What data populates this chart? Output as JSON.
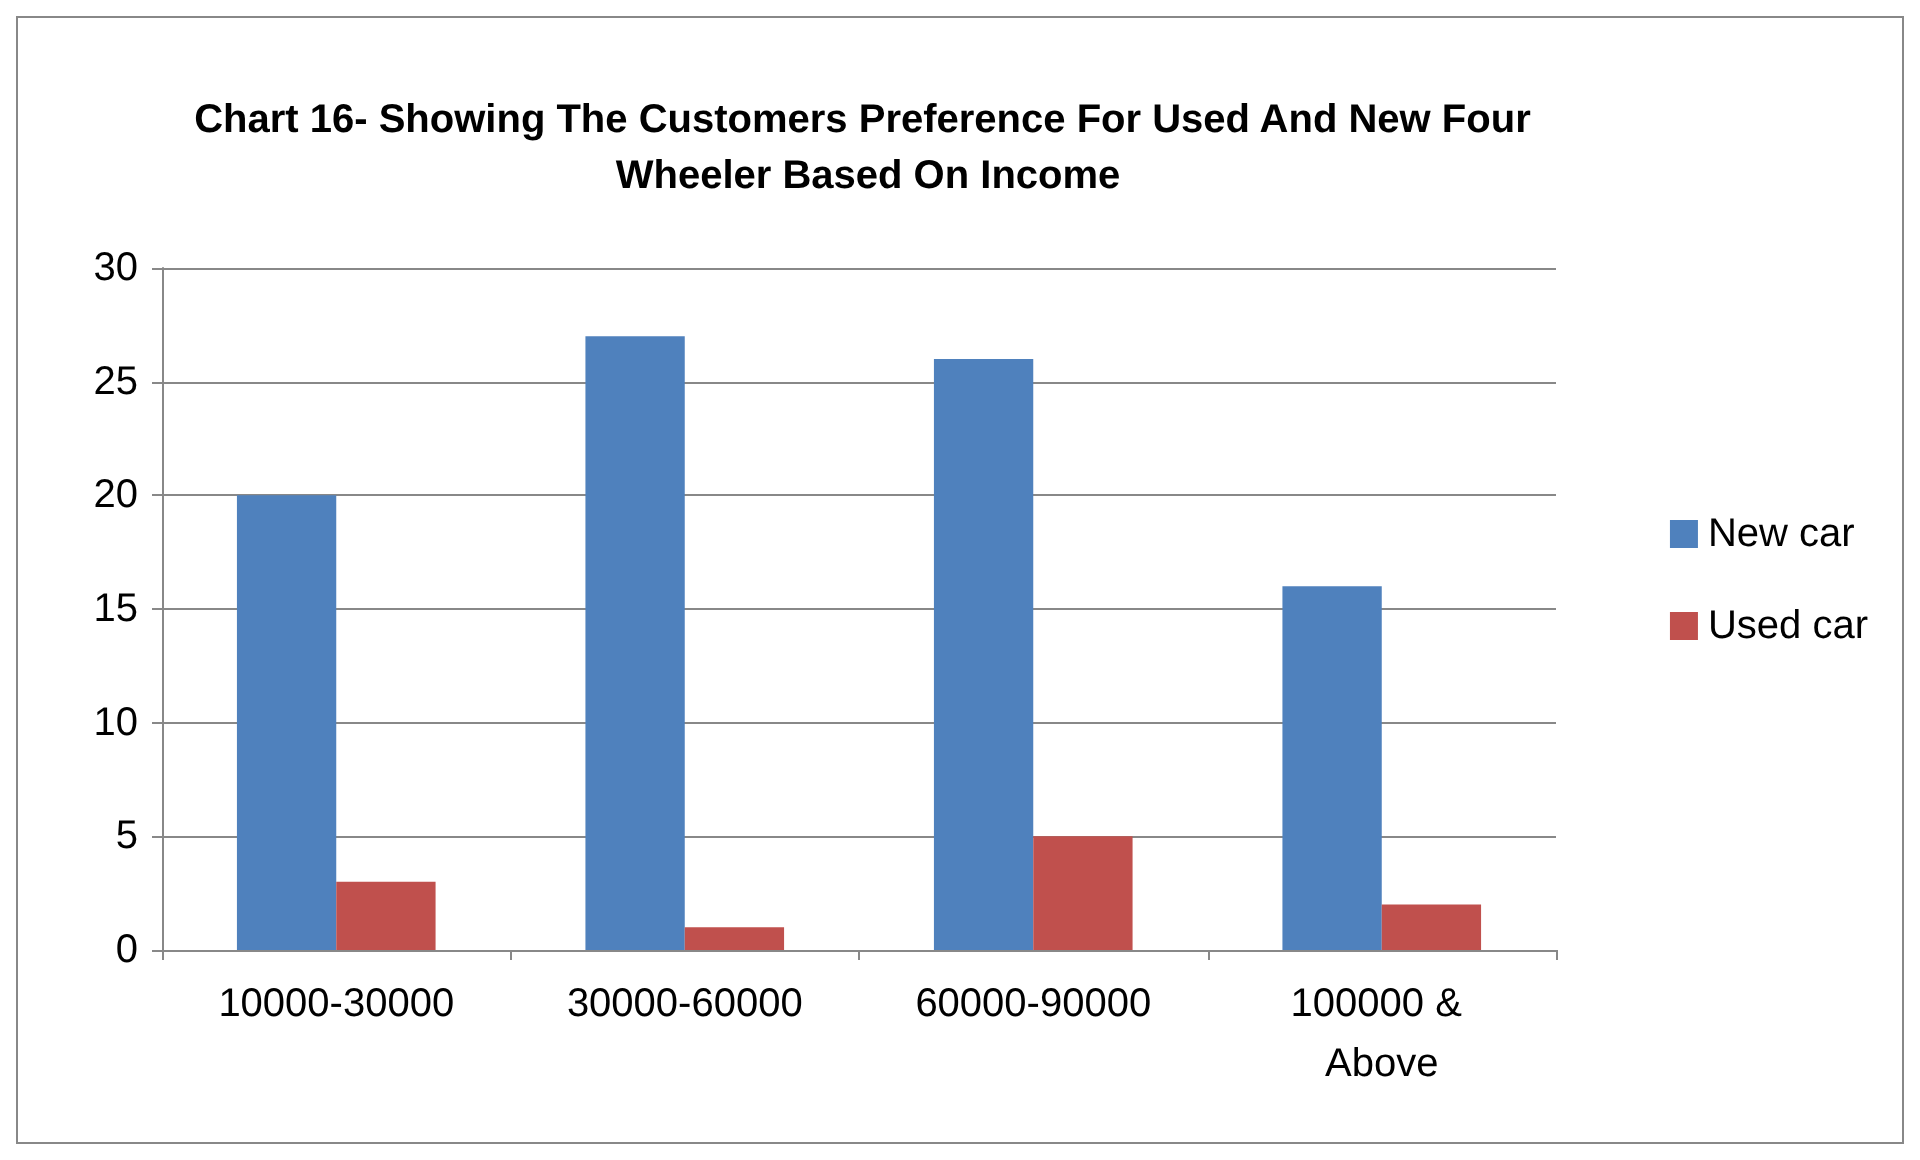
{
  "chart_data": {
    "type": "bar",
    "title": "Chart 16- Showing The Customers Preference For Used And New Four Wheeler Based On Income",
    "categories": [
      "10000-30000",
      "30000-60000",
      "60000-90000",
      "100000 & Above"
    ],
    "series": [
      {
        "name": "New car",
        "color": "#4f81bd",
        "values": [
          20,
          27,
          26,
          16
        ]
      },
      {
        "name": "Used car",
        "color": "#c0504d",
        "values": [
          3,
          1,
          5,
          2
        ]
      }
    ],
    "ylim": [
      0,
      30
    ],
    "yticks": [
      0,
      5,
      10,
      15,
      20,
      25,
      30
    ],
    "grid": "y",
    "legend": "right"
  }
}
